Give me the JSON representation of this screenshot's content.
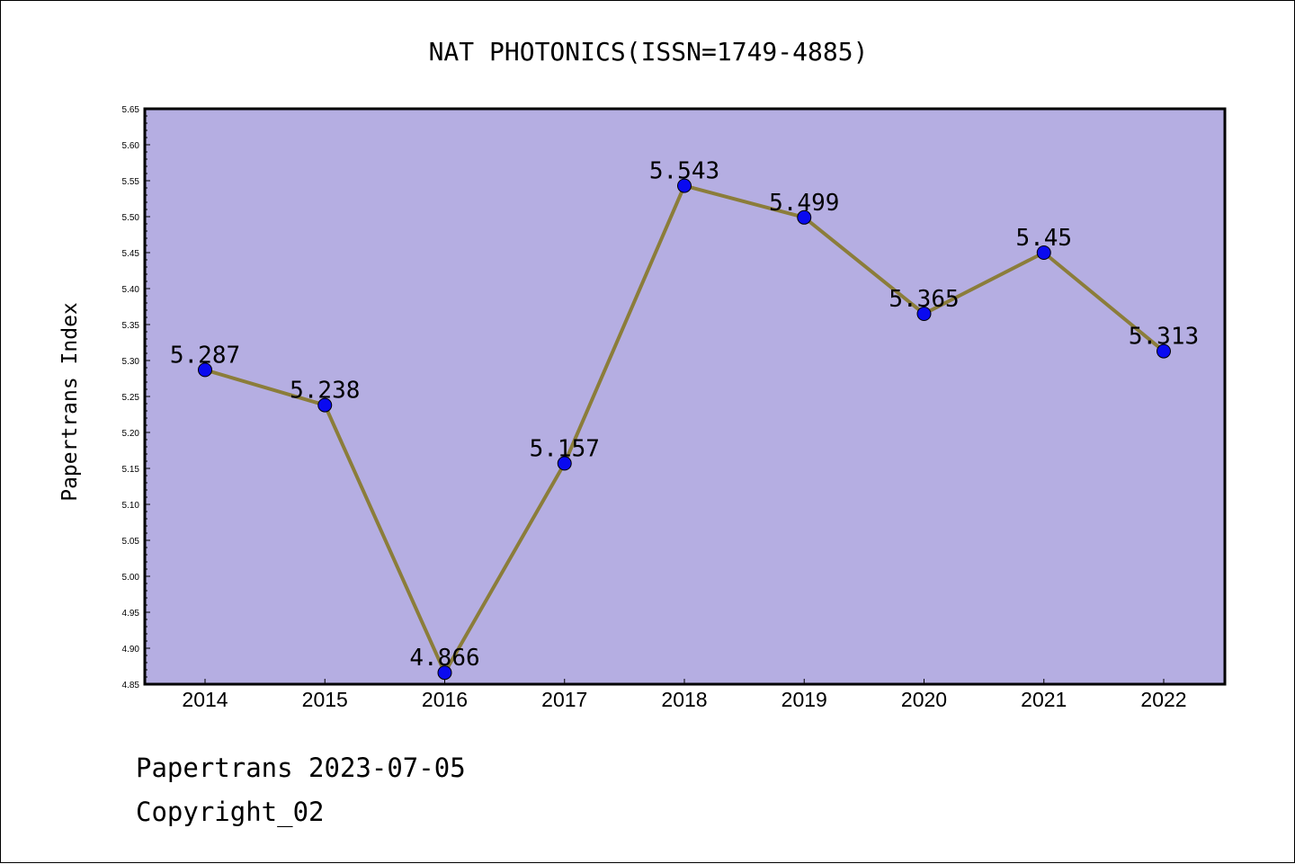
{
  "chart_data": {
    "type": "line",
    "title": "NAT PHOTONICS(ISSN=1749-4885)",
    "xlabel": "",
    "ylabel": "Papertrans Index",
    "categories": [
      "2014",
      "2015",
      "2016",
      "2017",
      "2018",
      "2019",
      "2020",
      "2021",
      "2022"
    ],
    "values": [
      5.287,
      5.238,
      4.866,
      5.157,
      5.543,
      5.499,
      5.365,
      5.45,
      5.313
    ],
    "data_labels": [
      "5.287",
      "5.238",
      "4.866",
      "5.157",
      "5.543",
      "5.499",
      "5.365",
      "5.45",
      "5.313"
    ],
    "ylim": [
      4.85,
      5.65
    ],
    "yticks": [
      "4.85",
      "4.90",
      "4.95",
      "5.00",
      "5.05",
      "5.10",
      "5.15",
      "5.20",
      "5.25",
      "5.30",
      "5.35",
      "5.40",
      "5.45",
      "5.50",
      "5.55",
      "5.60",
      "5.65"
    ],
    "grid": false,
    "legend": "none",
    "colors": {
      "plot_background": "#b5aee2",
      "line": "#8b7d3a",
      "marker": "#0a0af0"
    }
  },
  "footer": {
    "line1": "Papertrans 2023-07-05",
    "line2": "Copyright_02"
  }
}
